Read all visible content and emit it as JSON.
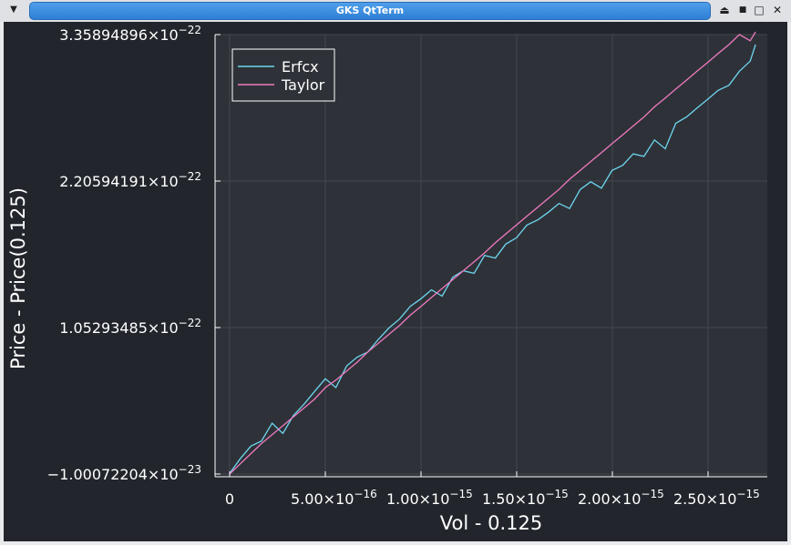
{
  "window": {
    "title": "GKS QtTerm"
  },
  "titlebar_icons": {
    "menu": "chevron-down-icon",
    "shade": "shade-icon",
    "minimize": "minimize-icon",
    "maximize": "maximize-icon",
    "close": "close-icon"
  },
  "colors": {
    "background": "#22262c",
    "plot_area": "#2e3238",
    "grid": "#42474e",
    "axis": "#ffffff",
    "erfcx": "#6ed6f0",
    "taylor": "#f07ac0"
  },
  "chart_data": {
    "type": "line",
    "xlabel": "Vol - 0.125",
    "ylabel": "Price - Price(0.125)",
    "xlim": [
      -3e-17,
      2.8e-15
    ],
    "ylim": [
      -1.00072204e-23,
      3.35894896e-22
    ],
    "x_ticks": [
      {
        "value": 0,
        "mantissa": "0",
        "exponent": ""
      },
      {
        "value": 5e-16,
        "mantissa": "5.00×10",
        "exponent": "−16"
      },
      {
        "value": 1e-15,
        "mantissa": "1.00×10",
        "exponent": "−15"
      },
      {
        "value": 1.5e-15,
        "mantissa": "1.50×10",
        "exponent": "−15"
      },
      {
        "value": 2e-15,
        "mantissa": "2.00×10",
        "exponent": "−15"
      },
      {
        "value": 2.5e-15,
        "mantissa": "2.50×10",
        "exponent": "−15"
      }
    ],
    "y_ticks": [
      {
        "value": -1.00072204e-23,
        "mantissa": "−1.00072204×10",
        "exponent": "−23"
      },
      {
        "value": 1.05293485e-22,
        "mantissa": "1.05293485×10",
        "exponent": "−22"
      },
      {
        "value": 2.20594191e-22,
        "mantissa": "2.20594191×10",
        "exponent": "−22"
      },
      {
        "value": 3.35894896e-22,
        "mantissa": "3.35894896×10",
        "exponent": "−22"
      }
    ],
    "grid": true,
    "legend_position": "top-left",
    "x": [
      0,
      5.5e-17,
      1.11e-16,
      1.66e-16,
      2.22e-16,
      2.78e-16,
      3.33e-16,
      3.89e-16,
      4.44e-16,
      5e-16,
      5.55e-16,
      6.11e-16,
      6.66e-16,
      7.22e-16,
      7.77e-16,
      8.33e-16,
      8.88e-16,
      9.44e-16,
      1e-15,
      1.055e-15,
      1.11e-15,
      1.166e-15,
      1.221e-15,
      1.277e-15,
      1.332e-15,
      1.388e-15,
      1.443e-15,
      1.499e-15,
      1.554e-15,
      1.61e-15,
      1.665e-15,
      1.721e-15,
      1.776e-15,
      1.832e-15,
      1.887e-15,
      1.943e-15,
      1.998e-15,
      2.054e-15,
      2.109e-15,
      2.165e-15,
      2.22e-15,
      2.276e-15,
      2.331e-15,
      2.387e-15,
      2.442e-15,
      2.498e-15,
      2.553e-15,
      2.609e-15,
      2.664e-15,
      2.72e-15,
      2.748e-15
    ],
    "series": [
      {
        "name": "Erfcx",
        "values": [
          -9.5e-24,
          2e-24,
          1.2e-23,
          1.6e-23,
          3e-23,
          2.2e-23,
          3.6e-23,
          4.5e-23,
          5.5e-23,
          6.5e-23,
          5.8e-23,
          7.5e-23,
          8.2e-23,
          8.6e-23,
          9.6e-23,
          1.05e-22,
          1.12e-22,
          1.22e-22,
          1.28e-22,
          1.35e-22,
          1.3e-22,
          1.45e-22,
          1.5e-22,
          1.48e-22,
          1.62e-22,
          1.6e-22,
          1.71e-22,
          1.76e-22,
          1.86e-22,
          1.9e-22,
          1.96e-22,
          2.03e-22,
          1.99e-22,
          2.14e-22,
          2.2e-22,
          2.15e-22,
          2.29e-22,
          2.33e-22,
          2.42e-22,
          2.4e-22,
          2.53e-22,
          2.46e-22,
          2.66e-22,
          2.71e-22,
          2.78e-22,
          2.85e-22,
          2.92e-22,
          2.96e-22,
          3.07e-22,
          3.15e-22,
          3.28e-22
        ]
      },
      {
        "name": "Taylor",
        "values": [
          -1e-23,
          -2e-24,
          6e-24,
          1.4e-23,
          2.1e-23,
          2.8e-23,
          3.5e-23,
          4.2e-23,
          4.9e-23,
          5.8e-23,
          6.4e-23,
          7.1e-23,
          7.8e-23,
          8.6e-23,
          9.3e-23,
          1e-22,
          1.07e-22,
          1.15e-22,
          1.22e-22,
          1.29e-22,
          1.36e-22,
          1.43e-22,
          1.5e-22,
          1.57e-22,
          1.64e-22,
          1.72e-22,
          1.79e-22,
          1.86e-22,
          1.93e-22,
          2e-22,
          2.07e-22,
          2.14e-22,
          2.22e-22,
          2.29e-22,
          2.36e-22,
          2.43e-22,
          2.5e-22,
          2.57e-22,
          2.64e-22,
          2.71e-22,
          2.79e-22,
          2.86e-22,
          2.93e-22,
          3e-22,
          3.07e-22,
          3.14e-22,
          3.21e-22,
          3.28e-22,
          3.36e-22,
          3.31e-22,
          3.38e-22
        ]
      }
    ]
  }
}
